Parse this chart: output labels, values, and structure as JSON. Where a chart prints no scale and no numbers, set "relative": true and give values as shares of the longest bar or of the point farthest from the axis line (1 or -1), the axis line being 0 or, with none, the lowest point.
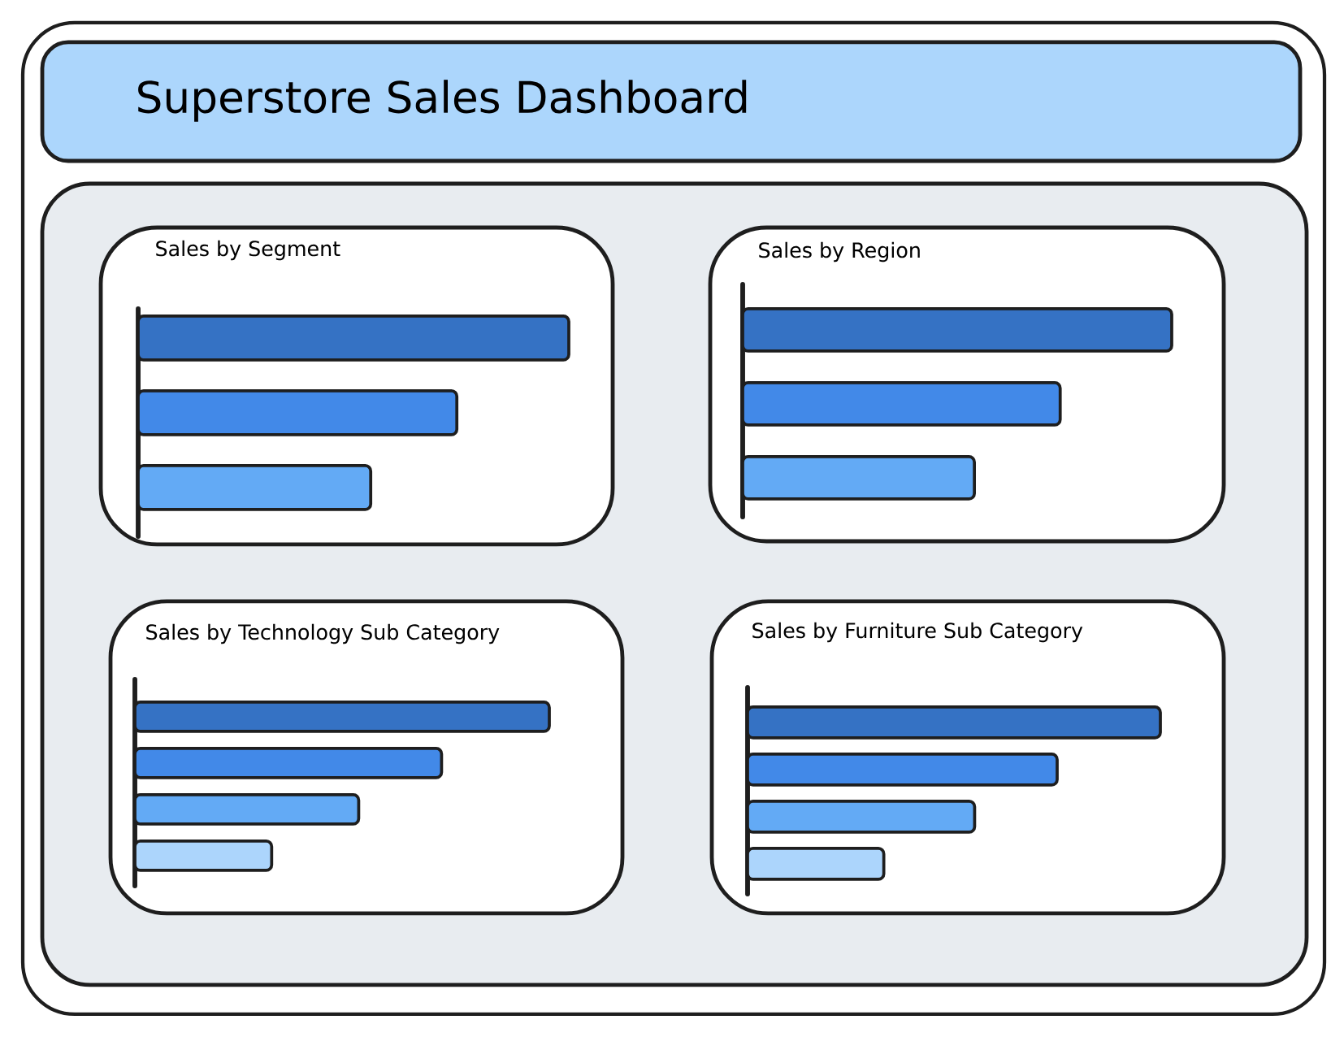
{
  "chart_data": [
    {
      "type": "other",
      "title": "Superstore Sales Dashboard"
    },
    {
      "type": "bar",
      "title": "Sales by Segment",
      "orientation": "horizontal",
      "relative": true,
      "categories": [
        null,
        null,
        null
      ],
      "values": [
        1,
        0.74,
        0.54
      ],
      "colors": [
        "#3572c4",
        "#4289e8",
        "#63aaf5"
      ]
    },
    {
      "type": "bar",
      "title": "Sales by Region",
      "orientation": "horizontal",
      "relative": true,
      "categories": [
        null,
        null,
        null
      ],
      "values": [
        1,
        0.74,
        0.54
      ],
      "colors": [
        "#3572c4",
        "#4289e8",
        "#63aaf5"
      ]
    },
    {
      "type": "bar",
      "title": "Sales by Technology Sub Category",
      "orientation": "horizontal",
      "relative": true,
      "categories": [
        null,
        null,
        null,
        null
      ],
      "values": [
        1,
        0.74,
        0.54,
        0.33
      ],
      "colors": [
        "#3572c4",
        "#4289e8",
        "#63aaf5",
        "#acd5fc"
      ]
    },
    {
      "type": "bar",
      "title": "Sales by Furniture Sub Category",
      "orientation": "horizontal",
      "relative": true,
      "categories": [
        null,
        null,
        null,
        null
      ],
      "values": [
        1,
        0.75,
        0.55,
        0.33
      ],
      "colors": [
        "#3572c4",
        "#4289e8",
        "#63aaf5",
        "#acd5fc"
      ]
    }
  ]
}
